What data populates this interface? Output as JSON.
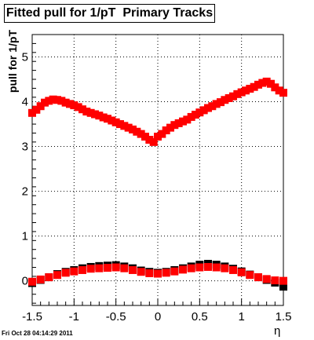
{
  "chart_data": {
    "type": "scatter",
    "title": "Fitted pull for 1/pT  Primary Tracks",
    "xlabel": "η",
    "ylabel": "pull for 1/pT",
    "xlim": [
      -1.5,
      1.5
    ],
    "ylim": [
      -0.55,
      5.5
    ],
    "xticks": [
      -1.5,
      -1,
      -0.5,
      0,
      0.5,
      1,
      1.5
    ],
    "xtick_labels": [
      "-1.5",
      "-1",
      "-0.5",
      "0",
      "0.5",
      "1",
      "1.5"
    ],
    "yticks": [
      0,
      1,
      2,
      3,
      4,
      5
    ],
    "ytick_labels": [
      "0",
      "1",
      "2",
      "3",
      "4",
      "5"
    ],
    "grid": true,
    "marker": "square",
    "series": [
      {
        "color": "#000000",
        "x": [
          -1.5,
          -1.4,
          -1.3,
          -1.2,
          -1.1,
          -1.0,
          -0.9,
          -0.8,
          -0.7,
          -0.6,
          -0.5,
          -0.4,
          -0.3,
          -0.2,
          -0.1,
          0.0,
          0.1,
          0.2,
          0.3,
          0.4,
          0.5,
          0.6,
          0.7,
          0.8,
          0.9,
          1.0,
          1.1,
          1.2,
          1.3,
          1.4,
          1.5
        ],
        "y": [
          -0.05,
          0.02,
          0.08,
          0.15,
          0.2,
          0.24,
          0.28,
          0.31,
          0.33,
          0.34,
          0.35,
          0.32,
          0.28,
          0.23,
          0.2,
          0.18,
          0.2,
          0.24,
          0.28,
          0.32,
          0.36,
          0.38,
          0.36,
          0.32,
          0.27,
          0.21,
          0.14,
          0.08,
          0.02,
          -0.04,
          -0.13
        ]
      },
      {
        "color": "#ff0000",
        "x": [
          -1.5,
          -1.45,
          -1.4,
          -1.35,
          -1.3,
          -1.25,
          -1.2,
          -1.15,
          -1.1,
          -1.05,
          -1.0,
          -0.95,
          -0.9,
          -0.85,
          -0.8,
          -0.75,
          -0.7,
          -0.65,
          -0.6,
          -0.55,
          -0.5,
          -0.45,
          -0.4,
          -0.35,
          -0.3,
          -0.25,
          -0.2,
          -0.15,
          -0.1,
          -0.05,
          0.0,
          0.05,
          0.1,
          0.15,
          0.2,
          0.25,
          0.3,
          0.35,
          0.4,
          0.45,
          0.5,
          0.55,
          0.6,
          0.65,
          0.7,
          0.75,
          0.8,
          0.85,
          0.9,
          0.95,
          1.0,
          1.05,
          1.1,
          1.15,
          1.2,
          1.25,
          1.3,
          1.35,
          1.4,
          1.45,
          1.5
        ],
        "y": [
          3.75,
          3.82,
          3.9,
          3.98,
          4.02,
          4.05,
          4.04,
          4.02,
          3.98,
          3.95,
          3.92,
          3.88,
          3.83,
          3.78,
          3.75,
          3.72,
          3.69,
          3.65,
          3.62,
          3.58,
          3.54,
          3.5,
          3.46,
          3.42,
          3.38,
          3.33,
          3.28,
          3.22,
          3.15,
          3.1,
          3.22,
          3.28,
          3.36,
          3.42,
          3.48,
          3.52,
          3.56,
          3.6,
          3.66,
          3.71,
          3.76,
          3.81,
          3.86,
          3.9,
          3.95,
          3.99,
          4.04,
          4.08,
          4.12,
          4.17,
          4.21,
          4.25,
          4.29,
          4.33,
          4.38,
          4.42,
          4.45,
          4.4,
          4.32,
          4.25,
          4.2
        ]
      },
      {
        "color": "#ff0000",
        "x": [
          -1.5,
          -1.4,
          -1.3,
          -1.2,
          -1.1,
          -1.0,
          -0.9,
          -0.8,
          -0.7,
          -0.6,
          -0.5,
          -0.4,
          -0.3,
          -0.2,
          -0.1,
          0.0,
          0.1,
          0.2,
          0.3,
          0.4,
          0.5,
          0.6,
          0.7,
          0.8,
          0.9,
          1.0,
          1.1,
          1.2,
          1.3,
          1.4,
          1.5
        ],
        "y": [
          -0.02,
          0.03,
          0.08,
          0.13,
          0.18,
          0.21,
          0.24,
          0.27,
          0.28,
          0.29,
          0.3,
          0.28,
          0.24,
          0.2,
          0.17,
          0.16,
          0.18,
          0.21,
          0.25,
          0.28,
          0.3,
          0.31,
          0.3,
          0.28,
          0.24,
          0.19,
          0.13,
          0.08,
          0.04,
          0.01,
          0.0
        ]
      }
    ]
  },
  "footer": {
    "datestamp": "Fri Oct 28 04:14:29 2011"
  }
}
